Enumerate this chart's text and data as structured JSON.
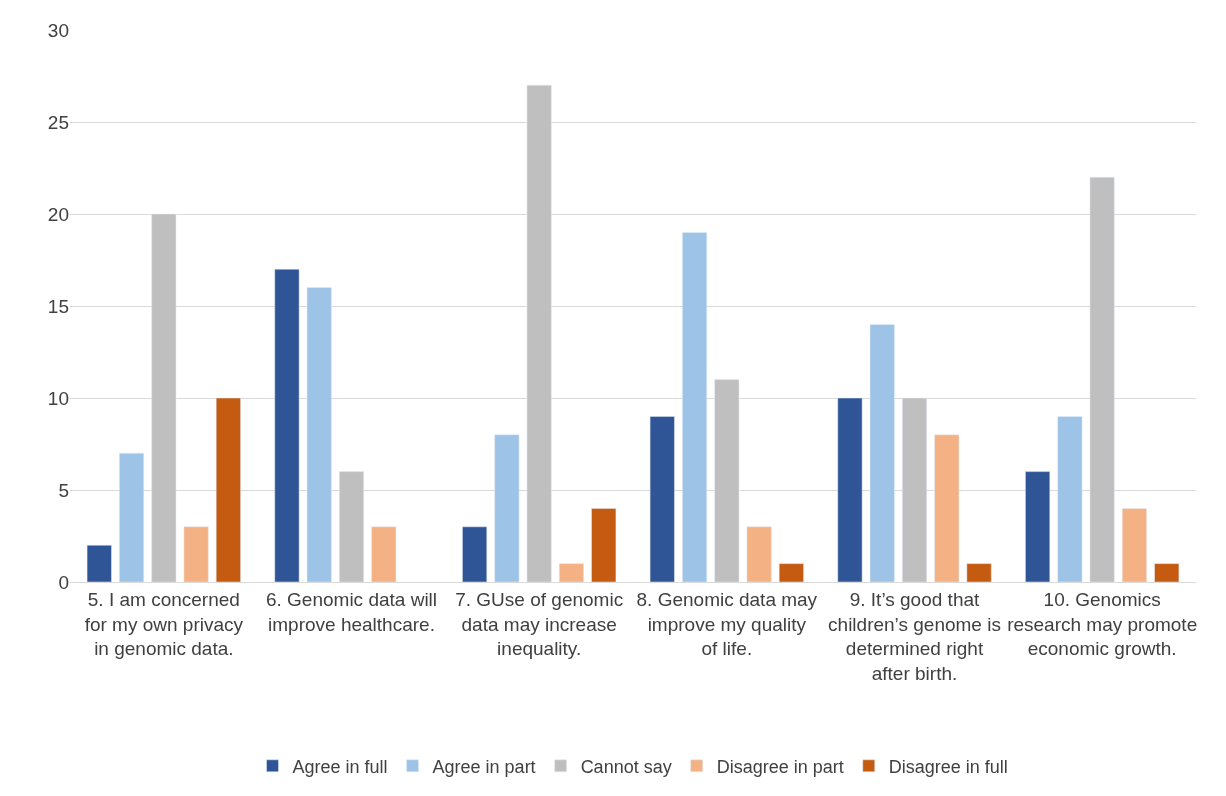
{
  "chart_data": {
    "type": "bar",
    "categories": [
      "5. I am concerned for my own privacy in genomic data.",
      "6. Genomic data will improve healthcare.",
      "7. GUse of genomic data may increase inequality.",
      "8. Genomic data may improve my quality of life.",
      "9. It’s good that children’s genome is determined right after birth.",
      "10. Genomics research may promote economic growth."
    ],
    "series": [
      {
        "name": "Agree in full",
        "color": "#2f5597",
        "values": [
          2,
          17,
          3,
          9,
          10,
          6
        ]
      },
      {
        "name": "Agree in part",
        "color": "#9dc3e6",
        "values": [
          7,
          16,
          8,
          19,
          14,
          9
        ]
      },
      {
        "name": "Cannot say",
        "color": "#bfbfbf",
        "values": [
          20,
          6,
          27,
          11,
          10,
          22
        ]
      },
      {
        "name": "Disagree in part",
        "color": "#f4b183",
        "values": [
          3,
          3,
          1,
          3,
          8,
          4
        ]
      },
      {
        "name": "Disagree in full",
        "color": "#c55a11",
        "values": [
          10,
          null,
          4,
          1,
          1,
          1
        ]
      }
    ],
    "ylim": [
      0,
      30
    ],
    "yticks": [
      0,
      5,
      10,
      15,
      20,
      25,
      30
    ],
    "grid": "y",
    "legend": "bottom"
  }
}
